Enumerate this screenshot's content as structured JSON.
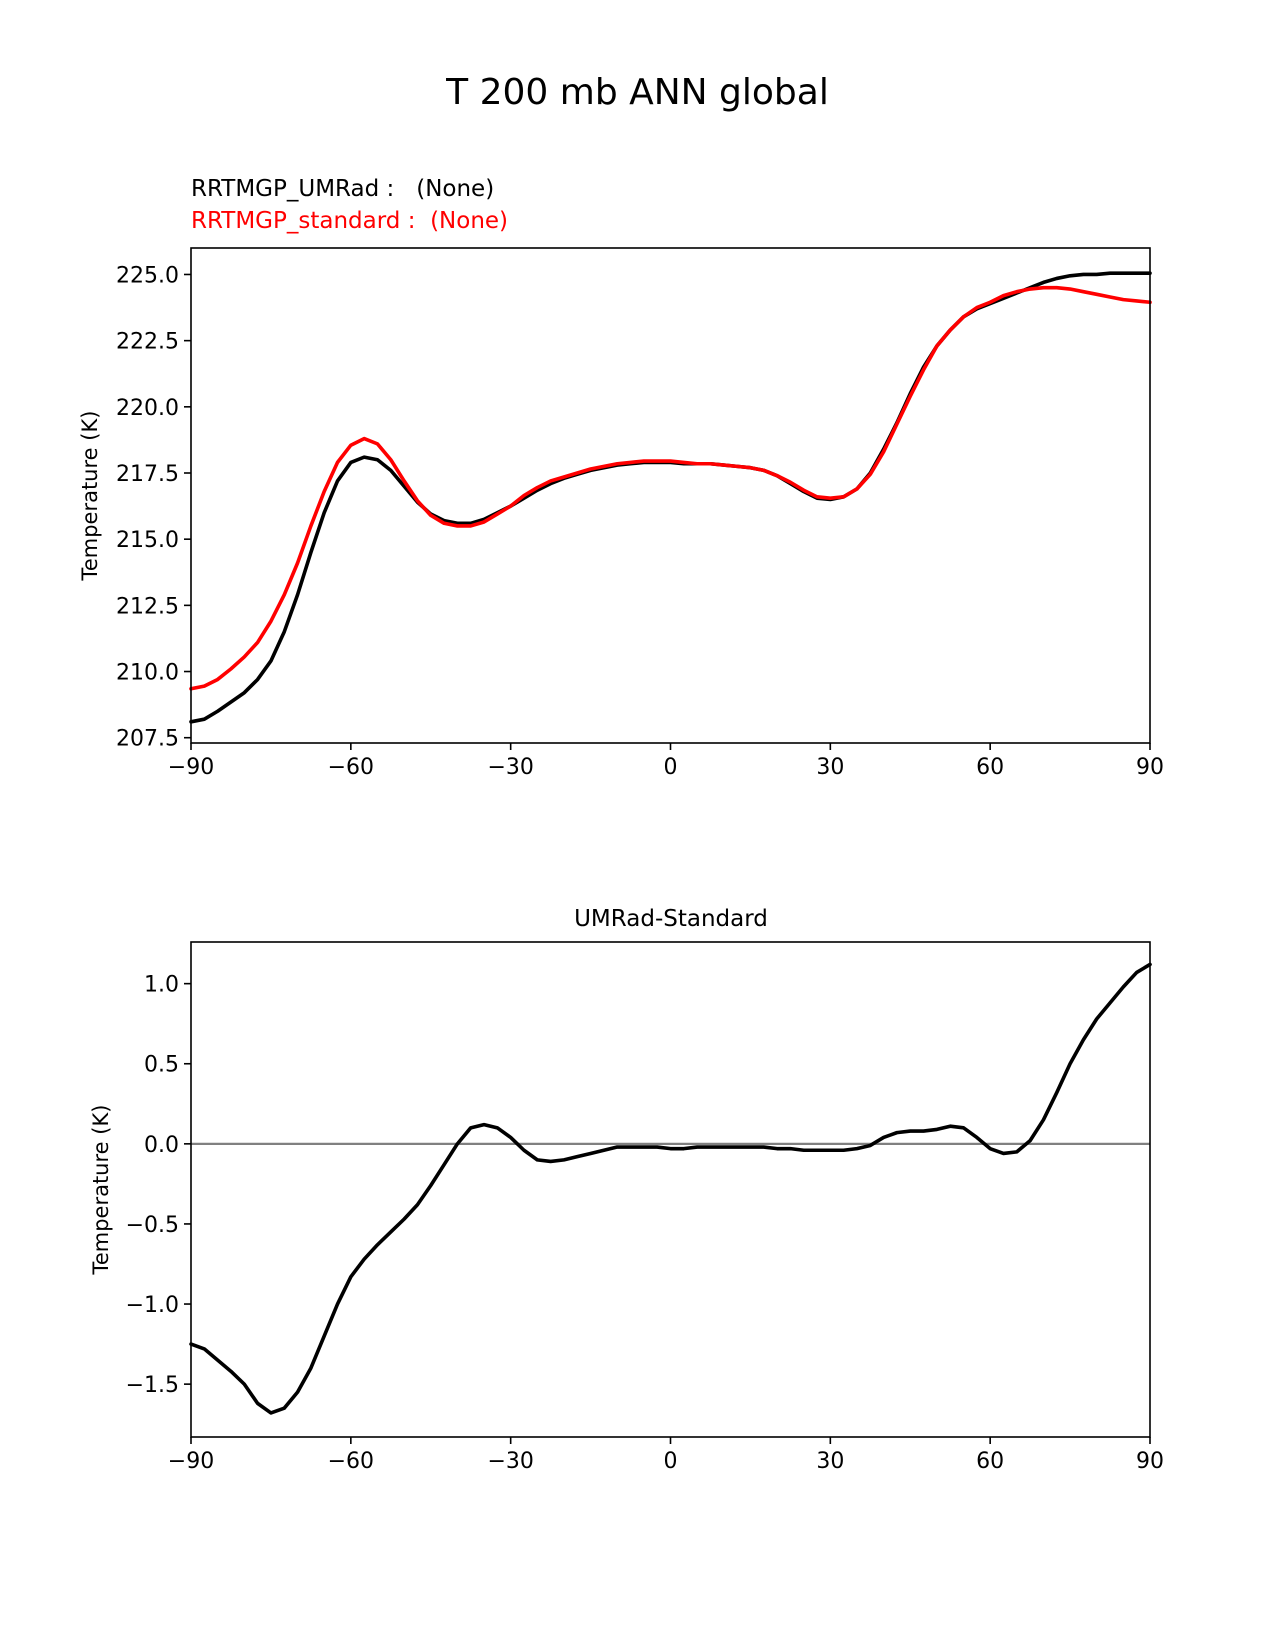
{
  "figure": {
    "title": "T 200 mb ANN global"
  },
  "chart_data": [
    {
      "type": "line",
      "legend_labels": [
        "RRTMGP_UMRad :   (None)",
        "RRTMGP_standard :  (None)"
      ],
      "ylabel": "Temperature (K)",
      "xlabel": "",
      "xlim": [
        -90,
        90
      ],
      "ylim": [
        207.3,
        226.0
      ],
      "xticks": [
        -90,
        -60,
        -30,
        0,
        30,
        60,
        90
      ],
      "xtick_labels": [
        "−90",
        "−60",
        "−30",
        "0",
        "30",
        "60",
        "90"
      ],
      "yticks": [
        207.5,
        210.0,
        212.5,
        215.0,
        217.5,
        220.0,
        222.5,
        225.0
      ],
      "ytick_labels": [
        "207.5",
        "210.0",
        "212.5",
        "215.0",
        "217.5",
        "220.0",
        "222.5",
        "225.0"
      ],
      "grid": false,
      "x": [
        -90,
        -87.5,
        -85,
        -82.5,
        -80,
        -77.5,
        -75,
        -72.5,
        -70,
        -67.5,
        -65,
        -62.5,
        -60,
        -57.5,
        -55,
        -52.5,
        -50,
        -47.5,
        -45,
        -42.5,
        -40,
        -37.5,
        -35,
        -32.5,
        -30,
        -27.5,
        -25,
        -22.5,
        -20,
        -17.5,
        -15,
        -12.5,
        -10,
        -7.5,
        -5,
        -2.5,
        0,
        2.5,
        5,
        7.5,
        10,
        12.5,
        15,
        17.5,
        20,
        22.5,
        25,
        27.5,
        30,
        32.5,
        35,
        37.5,
        40,
        42.5,
        45,
        47.5,
        50,
        52.5,
        55,
        57.5,
        60,
        62.5,
        65,
        67.5,
        70,
        72.5,
        75,
        77.5,
        80,
        82.5,
        85,
        87.5,
        90
      ],
      "series": [
        {
          "name": "RRTMGP_UMRad",
          "color": "#000000",
          "values": [
            208.1,
            208.2,
            208.5,
            208.85,
            209.2,
            209.7,
            210.4,
            211.5,
            212.9,
            214.5,
            216.0,
            217.2,
            217.9,
            218.1,
            218.0,
            217.6,
            217.0,
            216.4,
            215.95,
            215.7,
            215.6,
            215.6,
            215.75,
            216.0,
            216.25,
            216.55,
            216.85,
            217.1,
            217.3,
            217.45,
            217.6,
            217.7,
            217.8,
            217.85,
            217.9,
            217.9,
            217.9,
            217.85,
            217.85,
            217.85,
            217.8,
            217.75,
            217.7,
            217.6,
            217.4,
            217.1,
            216.8,
            216.55,
            216.5,
            216.6,
            216.9,
            217.5,
            218.4,
            219.4,
            220.5,
            221.5,
            222.3,
            222.9,
            223.4,
            223.7,
            223.9,
            224.1,
            224.3,
            224.5,
            224.7,
            224.85,
            224.95,
            225.0,
            225.0,
            225.05,
            225.05,
            225.05,
            225.05
          ]
        },
        {
          "name": "RRTMGP_standard",
          "color": "#ff0000",
          "values": [
            209.35,
            209.45,
            209.7,
            210.1,
            210.55,
            211.1,
            211.9,
            212.9,
            214.1,
            215.5,
            216.8,
            217.9,
            218.55,
            218.8,
            218.6,
            218.0,
            217.2,
            216.45,
            215.9,
            215.6,
            215.5,
            215.5,
            215.65,
            215.95,
            216.25,
            216.65,
            216.95,
            217.2,
            217.35,
            217.5,
            217.65,
            217.75,
            217.85,
            217.9,
            217.95,
            217.95,
            217.95,
            217.9,
            217.85,
            217.85,
            217.8,
            217.75,
            217.7,
            217.6,
            217.4,
            217.15,
            216.85,
            216.6,
            216.55,
            216.6,
            216.9,
            217.45,
            218.3,
            219.35,
            220.4,
            221.4,
            222.3,
            222.9,
            223.4,
            223.75,
            223.95,
            224.2,
            224.35,
            224.45,
            224.5,
            224.5,
            224.45,
            224.35,
            224.25,
            224.15,
            224.05,
            224.0,
            223.95
          ]
        }
      ]
    },
    {
      "type": "line",
      "title": "UMRad-Standard",
      "ylabel": "Temperature (K)",
      "xlabel": "",
      "xlim": [
        -90,
        90
      ],
      "ylim": [
        -1.83,
        1.26
      ],
      "xticks": [
        -90,
        -60,
        -30,
        0,
        30,
        60,
        90
      ],
      "xtick_labels": [
        "−90",
        "−60",
        "−30",
        "0",
        "30",
        "60",
        "90"
      ],
      "yticks": [
        1.0,
        0.5,
        0.0,
        -0.5,
        -1.0,
        -1.5
      ],
      "ytick_labels": [
        "1.0",
        "0.5",
        "0.0",
        "−0.5",
        "−1.0",
        "−1.5"
      ],
      "grid": false,
      "zero_line_color": "#808080",
      "x": [
        -90,
        -87.5,
        -85,
        -82.5,
        -80,
        -77.5,
        -75,
        -72.5,
        -70,
        -67.5,
        -65,
        -62.5,
        -60,
        -57.5,
        -55,
        -52.5,
        -50,
        -47.5,
        -45,
        -42.5,
        -40,
        -37.5,
        -35,
        -32.5,
        -30,
        -27.5,
        -25,
        -22.5,
        -20,
        -17.5,
        -15,
        -12.5,
        -10,
        -7.5,
        -5,
        -2.5,
        0,
        2.5,
        5,
        7.5,
        10,
        12.5,
        15,
        17.5,
        20,
        22.5,
        25,
        27.5,
        30,
        32.5,
        35,
        37.5,
        40,
        42.5,
        45,
        47.5,
        50,
        52.5,
        55,
        57.5,
        60,
        62.5,
        65,
        67.5,
        70,
        72.5,
        75,
        77.5,
        80,
        82.5,
        85,
        87.5,
        90
      ],
      "series": [
        {
          "color": "#000000",
          "values": [
            -1.25,
            -1.28,
            -1.35,
            -1.42,
            -1.5,
            -1.62,
            -1.68,
            -1.65,
            -1.55,
            -1.4,
            -1.2,
            -1.0,
            -0.83,
            -0.72,
            -0.63,
            -0.55,
            -0.47,
            -0.38,
            -0.26,
            -0.13,
            0.0,
            0.1,
            0.12,
            0.1,
            0.04,
            -0.04,
            -0.1,
            -0.11,
            -0.1,
            -0.08,
            -0.06,
            -0.04,
            -0.02,
            -0.02,
            -0.02,
            -0.02,
            -0.03,
            -0.03,
            -0.02,
            -0.02,
            -0.02,
            -0.02,
            -0.02,
            -0.02,
            -0.03,
            -0.03,
            -0.04,
            -0.04,
            -0.04,
            -0.04,
            -0.03,
            -0.01,
            0.04,
            0.07,
            0.08,
            0.08,
            0.09,
            0.11,
            0.1,
            0.04,
            -0.03,
            -0.06,
            -0.05,
            0.02,
            0.15,
            0.32,
            0.5,
            0.65,
            0.78,
            0.88,
            0.98,
            1.07,
            1.12
          ]
        }
      ]
    }
  ]
}
